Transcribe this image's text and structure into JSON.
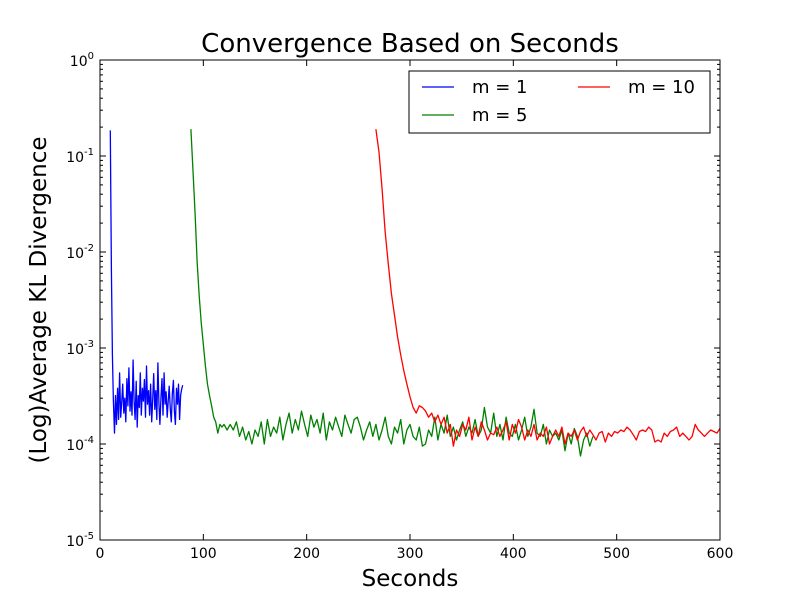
{
  "chart_data": {
    "type": "line",
    "title": "Convergence Based on Seconds",
    "xlabel": "Seconds",
    "ylabel": "(Log)Average KL Divergence",
    "xlim": [
      0,
      600
    ],
    "ylim": [
      1e-05,
      1
    ],
    "yscale": "log",
    "grid": false,
    "legend_position": "top-right",
    "x_ticks": [
      {
        "value": 0,
        "label": "0"
      },
      {
        "value": 100,
        "label": "100"
      },
      {
        "value": 200,
        "label": "200"
      },
      {
        "value": 300,
        "label": "300"
      },
      {
        "value": 400,
        "label": "400"
      },
      {
        "value": 500,
        "label": "500"
      },
      {
        "value": 600,
        "label": "600"
      }
    ],
    "y_ticks": [
      {
        "value": 1,
        "base": "10",
        "exp": "0"
      },
      {
        "value": 0.1,
        "base": "10",
        "exp": "-1"
      },
      {
        "value": 0.01,
        "base": "10",
        "exp": "-2"
      },
      {
        "value": 0.001,
        "base": "10",
        "exp": "-3"
      },
      {
        "value": 0.0001,
        "base": "10",
        "exp": "-4"
      },
      {
        "value": 1e-05,
        "base": "10",
        "exp": "-5"
      }
    ],
    "series": [
      {
        "name": "m = 1",
        "color": "#0000ff",
        "x": [
          10,
          11,
          12,
          13,
          14,
          15,
          16,
          17,
          18,
          19,
          20,
          21,
          22,
          23,
          24,
          25,
          26,
          27,
          28,
          29,
          30,
          31,
          32,
          33,
          34,
          35,
          36,
          37,
          38,
          39,
          40,
          41,
          42,
          43,
          44,
          45,
          46,
          47,
          48,
          49,
          50,
          51,
          52,
          53,
          54,
          55,
          56,
          57,
          58,
          59,
          60,
          61,
          62,
          63,
          64,
          65,
          66,
          67,
          68,
          69,
          70,
          71,
          72,
          73,
          74,
          75,
          76,
          77,
          78,
          79,
          80
        ],
        "y": [
          0.185,
          0.0065,
          0.00085,
          0.00028,
          0.00013,
          0.00032,
          0.00016,
          0.00038,
          0.00018,
          0.00055,
          0.00019,
          0.00027,
          0.00042,
          0.00021,
          0.0003,
          0.00017,
          0.00048,
          0.00025,
          0.00062,
          0.00022,
          0.00035,
          0.0002,
          0.00075,
          0.00028,
          0.00018,
          0.00045,
          0.00015,
          0.00032,
          0.00024,
          0.00055,
          0.0002,
          0.00038,
          0.00028,
          0.00047,
          0.00019,
          0.00065,
          0.00026,
          0.00036,
          0.0002,
          0.00042,
          0.00017,
          0.00029,
          0.00054,
          0.00023,
          0.00036,
          0.00018,
          0.0007,
          0.00027,
          0.00016,
          0.00031,
          0.00048,
          0.0002,
          0.00055,
          0.00026,
          0.00035,
          0.00019,
          0.00028,
          0.0004,
          0.00023,
          0.00017,
          0.00033,
          0.00046,
          0.00022,
          0.00016,
          0.00038,
          0.00026,
          0.00042,
          0.00018,
          0.00032,
          0.00037,
          0.00041
        ]
      },
      {
        "name": "m = 5",
        "color": "#008000",
        "x": [
          88,
          90,
          92,
          94,
          96,
          98,
          100,
          102,
          104,
          106,
          108,
          110,
          112,
          114,
          116,
          118,
          120,
          123,
          126,
          129,
          132,
          135,
          138,
          141,
          144,
          147,
          150,
          153,
          156,
          159,
          162,
          165,
          168,
          171,
          174,
          177,
          180,
          183,
          186,
          189,
          192,
          195,
          198,
          201,
          204,
          207,
          210,
          213,
          216,
          219,
          222,
          225,
          228,
          231,
          234,
          237,
          240,
          243,
          246,
          249,
          252,
          255,
          258,
          261,
          264,
          267,
          270,
          273,
          276,
          279,
          282,
          285,
          288,
          291,
          294,
          297,
          300,
          303,
          306,
          309,
          312,
          315,
          318,
          321,
          324,
          327,
          330,
          333,
          336,
          339,
          342,
          345,
          348,
          351,
          354,
          357,
          360,
          363,
          366,
          369,
          372,
          375,
          378,
          381,
          384,
          387,
          390,
          393,
          396,
          399,
          402,
          405,
          408,
          411,
          414,
          417,
          420,
          423,
          426,
          429,
          432,
          435,
          438,
          441,
          444,
          447,
          450,
          453,
          456,
          459,
          462,
          465,
          468,
          471,
          474,
          477
        ],
        "y": [
          0.19,
          0.07,
          0.025,
          0.008,
          0.0035,
          0.0018,
          0.0011,
          0.00065,
          0.00042,
          0.00032,
          0.00025,
          0.00019,
          0.00017,
          0.00013,
          0.00016,
          0.00015,
          0.00016,
          0.00014,
          0.00016,
          0.00014,
          0.00017,
          0.00012,
          0.00015,
          0.00011,
          0.000135,
          0.0001,
          0.00014,
          0.00012,
          0.00017,
          0.0001,
          0.00018,
          0.00012,
          0.00015,
          0.00013,
          0.00019,
          0.00011,
          0.00016,
          0.00021,
          0.00013,
          0.00018,
          0.00014,
          0.00022,
          0.00016,
          0.00012,
          0.0002,
          0.00015,
          0.00018,
          0.00013,
          0.00021,
          0.00011,
          0.00017,
          0.00014,
          0.00019,
          0.00015,
          0.00012,
          0.0002,
          0.00016,
          0.00013,
          0.00018,
          0.00019,
          0.00015,
          0.00011,
          0.00014,
          0.00017,
          0.00012,
          0.00016,
          0.00011,
          0.00014,
          0.00019,
          0.00012,
          0.0001,
          0.00015,
          0.00013,
          0.00018,
          0.0001,
          0.00014,
          0.00016,
          0.00012,
          0.00011,
          0.00015,
          9.5e-05,
          0.0001,
          0.00014,
          0.00012,
          0.00019,
          0.00011,
          0.00016,
          0.00013,
          0.0002,
          0.00012,
          0.00015,
          0.00011,
          0.00014,
          0.00017,
          0.00012,
          0.00015,
          0.00013,
          0.00018,
          0.00012,
          0.00014,
          0.00024,
          0.00015,
          0.00013,
          0.00021,
          0.00012,
          0.00016,
          0.00011,
          0.00019,
          0.00013,
          0.00012,
          0.00016,
          0.00011,
          0.00014,
          0.00019,
          0.00012,
          0.00015,
          0.00023,
          0.00013,
          0.00012,
          0.00016,
          0.0001,
          0.00014,
          0.00012,
          0.00013,
          0.00011,
          0.00014,
          8.5e-05,
          0.00013,
          0.0001,
          0.000145,
          0.00012,
          7.5e-05,
          0.00011,
          0.00013,
          9.5e-05,
          0.00012
        ]
      },
      {
        "name": "m = 10",
        "color": "#ff0000",
        "x": [
          267,
          270,
          273,
          276,
          279,
          282,
          285,
          288,
          291,
          294,
          297,
          300,
          303,
          306,
          309,
          312,
          315,
          318,
          321,
          324,
          327,
          330,
          333,
          336,
          339,
          342,
          345,
          348,
          351,
          354,
          357,
          360,
          363,
          366,
          369,
          372,
          375,
          378,
          381,
          384,
          387,
          390,
          393,
          396,
          399,
          402,
          405,
          408,
          411,
          414,
          417,
          420,
          423,
          426,
          429,
          432,
          435,
          438,
          441,
          444,
          447,
          450,
          453,
          456,
          459,
          462,
          465,
          468,
          471,
          474,
          477,
          480,
          483,
          486,
          489,
          492,
          495,
          498,
          501,
          504,
          507,
          510,
          513,
          516,
          519,
          522,
          525,
          528,
          531,
          534,
          537,
          540,
          543,
          546,
          549,
          552,
          555,
          558,
          561,
          564,
          567,
          570,
          573,
          576,
          579,
          582,
          585,
          588,
          591,
          594,
          597,
          600
        ],
        "y": [
          0.19,
          0.11,
          0.045,
          0.016,
          0.0075,
          0.0037,
          0.0022,
          0.0013,
          0.00085,
          0.00058,
          0.00042,
          0.00031,
          0.00024,
          0.00021,
          0.00025,
          0.00024,
          0.00022,
          0.00019,
          0.00021,
          0.00017,
          0.0002,
          0.00016,
          0.00019,
          0.00013,
          0.00016,
          9.5e-05,
          0.00014,
          0.00012,
          0.00016,
          0.00014,
          0.00019,
          0.00011,
          0.00015,
          0.00012,
          0.00017,
          0.00014,
          0.00011,
          0.00013,
          0.000125,
          0.00015,
          0.00012,
          0.00014,
          0.00017,
          0.00011,
          0.00016,
          0.00013,
          0.00018,
          0.00015,
          0.00011,
          0.00014,
          0.00012,
          0.00016,
          0.00011,
          0.00013,
          0.00012,
          0.00015,
          0.0001,
          0.00012,
          0.00014,
          0.00012,
          0.00015,
          0.0001,
          0.00013,
          0.00012,
          0.00014,
          0.00011,
          0.000135,
          0.00015,
          0.00012,
          0.00014,
          0.000125,
          0.00011,
          0.00013,
          0.000135,
          0.000105,
          0.00013,
          0.00012,
          0.000135,
          0.00013,
          0.00014,
          0.000135,
          0.00015,
          0.00014,
          0.000125,
          0.00011,
          0.000135,
          0.00014,
          0.000135,
          0.00015,
          0.00014,
          0.000105,
          0.00011,
          0.000105,
          0.00013,
          0.00012,
          0.000135,
          0.00014,
          0.00015,
          0.00012,
          0.00013,
          0.00012,
          0.00011,
          0.00012,
          0.00016,
          0.00014,
          0.00013,
          0.00012,
          0.00013,
          0.00014,
          0.000135,
          0.00013,
          0.000145
        ]
      }
    ]
  }
}
